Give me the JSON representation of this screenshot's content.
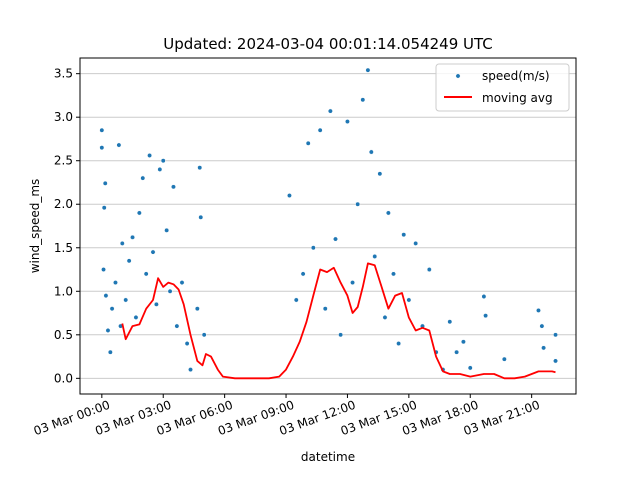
{
  "chart_data": {
    "type": "scatter",
    "title": "Updated: 2024-03-04 00:01:14.054249 UTC",
    "xlabel": "datetime",
    "ylabel": "wind_speed_ms",
    "xlim": [
      "2024-03-02 22:56",
      "2024-03-03 23:10"
    ],
    "ylim": [
      -0.18,
      3.68
    ],
    "x_ticks": [
      {
        "t": "2024-03-03 00:00",
        "label": "03 Mar 00:00"
      },
      {
        "t": "2024-03-03 03:00",
        "label": "03 Mar 03:00"
      },
      {
        "t": "2024-03-03 06:00",
        "label": "03 Mar 06:00"
      },
      {
        "t": "2024-03-03 09:00",
        "label": "03 Mar 09:00"
      },
      {
        "t": "2024-03-03 12:00",
        "label": "03 Mar 12:00"
      },
      {
        "t": "2024-03-03 15:00",
        "label": "03 Mar 15:00"
      },
      {
        "t": "2024-03-03 18:00",
        "label": "03 Mar 18:00"
      },
      {
        "t": "2024-03-03 21:00",
        "label": "03 Mar 21:00"
      }
    ],
    "y_ticks": [
      {
        "v": 0.0,
        "label": "0.0"
      },
      {
        "v": 0.5,
        "label": "0.5"
      },
      {
        "v": 1.0,
        "label": "1.0"
      },
      {
        "v": 1.5,
        "label": "1.5"
      },
      {
        "v": 2.0,
        "label": "2.0"
      },
      {
        "v": 2.5,
        "label": "2.5"
      },
      {
        "v": 3.0,
        "label": "3.0"
      },
      {
        "v": 3.5,
        "label": "3.5"
      }
    ],
    "grid": "horizontal",
    "legend": {
      "position": "top-right",
      "entries": [
        "speed(m/s)",
        "moving avg"
      ]
    },
    "series": [
      {
        "name": "speed(m/s)",
        "kind": "scatter",
        "color": "#1f77b4",
        "points": [
          [
            "2024-03-03 00:00",
            2.85
          ],
          [
            "2024-03-03 00:00",
            2.65
          ],
          [
            "2024-03-03 00:07",
            1.96
          ],
          [
            "2024-03-03 00:10",
            2.24
          ],
          [
            "2024-03-03 00:05",
            1.25
          ],
          [
            "2024-03-03 00:12",
            0.95
          ],
          [
            "2024-03-03 00:18",
            0.55
          ],
          [
            "2024-03-03 00:25",
            0.3
          ],
          [
            "2024-03-03 00:30",
            0.8
          ],
          [
            "2024-03-03 00:40",
            1.1
          ],
          [
            "2024-03-03 00:50",
            2.68
          ],
          [
            "2024-03-03 00:55",
            0.6
          ],
          [
            "2024-03-03 01:00",
            1.55
          ],
          [
            "2024-03-03 01:10",
            0.9
          ],
          [
            "2024-03-03 01:20",
            1.35
          ],
          [
            "2024-03-03 01:30",
            1.62
          ],
          [
            "2024-03-03 01:40",
            0.7
          ],
          [
            "2024-03-03 01:50",
            1.9
          ],
          [
            "2024-03-03 02:00",
            2.3
          ],
          [
            "2024-03-03 02:10",
            1.2
          ],
          [
            "2024-03-03 02:20",
            2.56
          ],
          [
            "2024-03-03 02:30",
            1.45
          ],
          [
            "2024-03-03 02:40",
            0.85
          ],
          [
            "2024-03-03 02:50",
            2.4
          ],
          [
            "2024-03-03 03:00",
            2.5
          ],
          [
            "2024-03-03 03:10",
            1.7
          ],
          [
            "2024-03-03 03:20",
            1.0
          ],
          [
            "2024-03-03 03:30",
            2.2
          ],
          [
            "2024-03-03 03:40",
            0.6
          ],
          [
            "2024-03-03 03:55",
            1.1
          ],
          [
            "2024-03-03 04:10",
            0.4
          ],
          [
            "2024-03-03 04:20",
            0.1
          ],
          [
            "2024-03-03 04:40",
            0.8
          ],
          [
            "2024-03-03 04:47",
            2.42
          ],
          [
            "2024-03-03 04:50",
            1.85
          ],
          [
            "2024-03-03 05:00",
            0.5
          ],
          [
            "2024-03-03 09:10",
            2.1
          ],
          [
            "2024-03-03 09:30",
            0.9
          ],
          [
            "2024-03-03 09:50",
            1.2
          ],
          [
            "2024-03-03 10:05",
            2.7
          ],
          [
            "2024-03-03 10:20",
            1.5
          ],
          [
            "2024-03-03 10:40",
            2.85
          ],
          [
            "2024-03-03 10:55",
            0.8
          ],
          [
            "2024-03-03 11:10",
            3.07
          ],
          [
            "2024-03-03 11:25",
            1.6
          ],
          [
            "2024-03-03 11:40",
            0.5
          ],
          [
            "2024-03-03 12:00",
            2.95
          ],
          [
            "2024-03-03 12:15",
            1.1
          ],
          [
            "2024-03-03 12:30",
            2.0
          ],
          [
            "2024-03-03 12:45",
            3.2
          ],
          [
            "2024-03-03 13:00",
            3.54
          ],
          [
            "2024-03-03 13:10",
            2.6
          ],
          [
            "2024-03-03 13:20",
            1.4
          ],
          [
            "2024-03-03 13:35",
            2.35
          ],
          [
            "2024-03-03 13:50",
            0.7
          ],
          [
            "2024-03-03 14:00",
            1.9
          ],
          [
            "2024-03-03 14:15",
            1.2
          ],
          [
            "2024-03-03 14:30",
            0.4
          ],
          [
            "2024-03-03 14:45",
            1.65
          ],
          [
            "2024-03-03 15:00",
            0.9
          ],
          [
            "2024-03-03 15:20",
            1.55
          ],
          [
            "2024-03-03 15:40",
            0.6
          ],
          [
            "2024-03-03 16:00",
            1.25
          ],
          [
            "2024-03-03 16:20",
            0.3
          ],
          [
            "2024-03-03 16:40",
            0.1
          ],
          [
            "2024-03-03 17:00",
            0.65
          ],
          [
            "2024-03-03 17:20",
            0.3
          ],
          [
            "2024-03-03 17:40",
            0.42
          ],
          [
            "2024-03-03 18:00",
            0.12
          ],
          [
            "2024-03-03 18:40",
            0.94
          ],
          [
            "2024-03-03 18:45",
            0.72
          ],
          [
            "2024-03-03 19:40",
            0.22
          ],
          [
            "2024-03-03 21:20",
            0.78
          ],
          [
            "2024-03-03 21:30",
            0.6
          ],
          [
            "2024-03-03 21:35",
            0.35
          ],
          [
            "2024-03-03 22:10",
            0.5
          ],
          [
            "2024-03-03 22:10",
            0.2
          ]
        ]
      },
      {
        "name": "moving avg",
        "kind": "line",
        "color": "#ff0000",
        "points": [
          [
            "2024-03-03 01:00",
            0.63
          ],
          [
            "2024-03-03 01:10",
            0.45
          ],
          [
            "2024-03-03 01:30",
            0.6
          ],
          [
            "2024-03-03 01:50",
            0.62
          ],
          [
            "2024-03-03 02:10",
            0.8
          ],
          [
            "2024-03-03 02:30",
            0.9
          ],
          [
            "2024-03-03 02:45",
            1.15
          ],
          [
            "2024-03-03 03:00",
            1.05
          ],
          [
            "2024-03-03 03:15",
            1.1
          ],
          [
            "2024-03-03 03:30",
            1.08
          ],
          [
            "2024-03-03 03:45",
            1.02
          ],
          [
            "2024-03-03 04:00",
            0.85
          ],
          [
            "2024-03-03 04:20",
            0.5
          ],
          [
            "2024-03-03 04:40",
            0.2
          ],
          [
            "2024-03-03 04:55",
            0.15
          ],
          [
            "2024-03-03 05:05",
            0.28
          ],
          [
            "2024-03-03 05:20",
            0.25
          ],
          [
            "2024-03-03 05:40",
            0.1
          ],
          [
            "2024-03-03 05:55",
            0.02
          ],
          [
            "2024-03-03 06:30",
            0.0
          ],
          [
            "2024-03-03 08:10",
            0.0
          ],
          [
            "2024-03-03 08:40",
            0.02
          ],
          [
            "2024-03-03 09:00",
            0.1
          ],
          [
            "2024-03-03 09:20",
            0.25
          ],
          [
            "2024-03-03 09:40",
            0.42
          ],
          [
            "2024-03-03 10:00",
            0.65
          ],
          [
            "2024-03-03 10:20",
            0.95
          ],
          [
            "2024-03-03 10:40",
            1.25
          ],
          [
            "2024-03-03 11:00",
            1.22
          ],
          [
            "2024-03-03 11:20",
            1.27
          ],
          [
            "2024-03-03 11:40",
            1.1
          ],
          [
            "2024-03-03 12:00",
            0.95
          ],
          [
            "2024-03-03 12:15",
            0.75
          ],
          [
            "2024-03-03 12:30",
            0.82
          ],
          [
            "2024-03-03 12:45",
            1.05
          ],
          [
            "2024-03-03 13:00",
            1.32
          ],
          [
            "2024-03-03 13:20",
            1.3
          ],
          [
            "2024-03-03 13:40",
            1.05
          ],
          [
            "2024-03-03 14:00",
            0.8
          ],
          [
            "2024-03-03 14:20",
            0.95
          ],
          [
            "2024-03-03 14:40",
            0.98
          ],
          [
            "2024-03-03 15:00",
            0.7
          ],
          [
            "2024-03-03 15:20",
            0.55
          ],
          [
            "2024-03-03 15:40",
            0.58
          ],
          [
            "2024-03-03 16:00",
            0.55
          ],
          [
            "2024-03-03 16:20",
            0.25
          ],
          [
            "2024-03-03 16:40",
            0.08
          ],
          [
            "2024-03-03 17:00",
            0.05
          ],
          [
            "2024-03-03 17:30",
            0.05
          ],
          [
            "2024-03-03 18:00",
            0.02
          ],
          [
            "2024-03-03 18:40",
            0.05
          ],
          [
            "2024-03-03 19:10",
            0.05
          ],
          [
            "2024-03-03 19:40",
            0.0
          ],
          [
            "2024-03-03 20:10",
            0.0
          ],
          [
            "2024-03-03 20:40",
            0.02
          ],
          [
            "2024-03-03 21:00",
            0.05
          ],
          [
            "2024-03-03 21:20",
            0.08
          ],
          [
            "2024-03-03 22:00",
            0.08
          ],
          [
            "2024-03-03 22:10",
            0.07
          ]
        ]
      }
    ]
  }
}
